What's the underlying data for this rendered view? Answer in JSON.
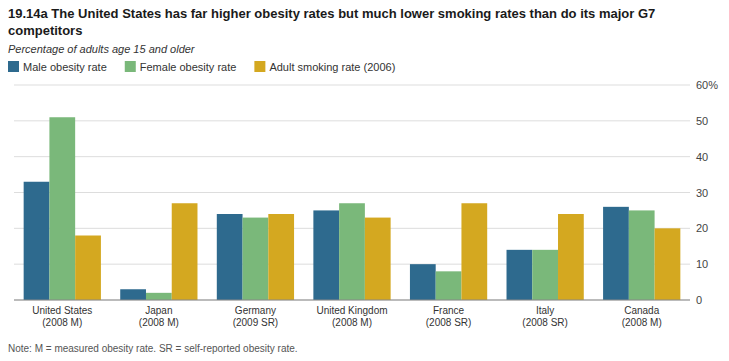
{
  "chart_data": {
    "type": "bar",
    "title": "19.14a The United States has far higher obesity rates but much lower smoking rates than do its major G7 competitors",
    "subtitle": "Percentage of adults age 15 and older",
    "annotations": [
      "Note: M = measured obesity rate. SR = self-reported obesity rate."
    ],
    "categories": [
      "United States\n(2008 M)",
      "Japan\n(2008 M)",
      "Germany\n(2009 SR)",
      "United Kingdom\n(2008 M)",
      "France\n(2008 SR)",
      "Italy\n(2008 SR)",
      "Canada\n(2008 M)"
    ],
    "series": [
      {
        "name": "Male obesity rate",
        "color": "#2e6a8e",
        "values": [
          33,
          3,
          24,
          25,
          10,
          14,
          26
        ]
      },
      {
        "name": "Female obesity rate",
        "color": "#7ab87a",
        "values": [
          51,
          2,
          23,
          27,
          8,
          14,
          25
        ]
      },
      {
        "name": "Adult smoking rate (2006)",
        "color": "#d4a820",
        "values": [
          18,
          27,
          24,
          23,
          27,
          24,
          20
        ]
      }
    ],
    "ylim": [
      0,
      60
    ],
    "yticks": [
      0,
      10,
      20,
      30,
      40,
      50,
      {
        "value": 60,
        "label": "60%"
      }
    ],
    "grid": true,
    "legend": "top"
  }
}
